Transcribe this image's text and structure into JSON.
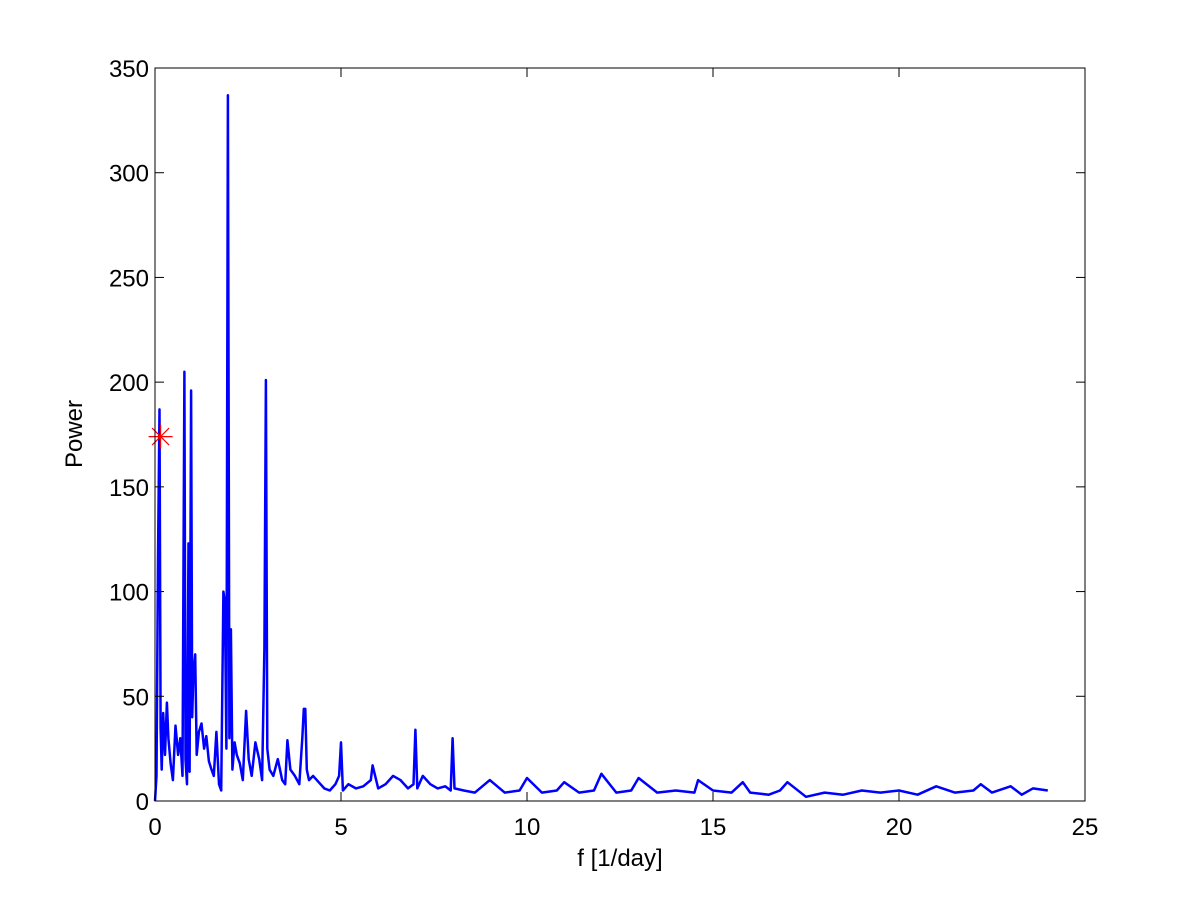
{
  "chart_data": {
    "type": "line",
    "title": "",
    "xlabel": "f [1/day]",
    "ylabel": "Power",
    "xlim": [
      0,
      25
    ],
    "ylim": [
      0,
      350
    ],
    "xticks": [
      0,
      5,
      10,
      15,
      20,
      25
    ],
    "yticks": [
      0,
      50,
      100,
      150,
      200,
      250,
      300,
      350
    ],
    "grid": false,
    "legend": "none",
    "colors": {
      "series": "#0000ff",
      "marker": "#ff0000",
      "axes": "#000000"
    },
    "series": [
      {
        "style": "line",
        "x": [
          0.0,
          0.04,
          0.08,
          0.12,
          0.15,
          0.18,
          0.22,
          0.27,
          0.32,
          0.36,
          0.42,
          0.48,
          0.55,
          0.62,
          0.68,
          0.74,
          0.79,
          0.82,
          0.86,
          0.9,
          0.93,
          0.97,
          1.0,
          1.03,
          1.08,
          1.12,
          1.18,
          1.25,
          1.32,
          1.38,
          1.45,
          1.52,
          1.58,
          1.65,
          1.72,
          1.78,
          1.84,
          1.88,
          1.92,
          1.96,
          2.0,
          2.04,
          2.08,
          2.14,
          2.2,
          2.28,
          2.36,
          2.45,
          2.52,
          2.6,
          2.7,
          2.8,
          2.88,
          2.94,
          2.98,
          3.02,
          3.08,
          3.18,
          3.3,
          3.42,
          3.5,
          3.56,
          3.64,
          3.76,
          3.88,
          3.96,
          4.0,
          4.04,
          4.08,
          4.14,
          4.25,
          4.4,
          4.55,
          4.7,
          4.85,
          4.95,
          5.0,
          5.05,
          5.2,
          5.4,
          5.6,
          5.8,
          5.85,
          6.0,
          6.2,
          6.4,
          6.6,
          6.8,
          6.95,
          7.0,
          7.05,
          7.2,
          7.4,
          7.6,
          7.8,
          7.95,
          8.0,
          8.05,
          8.3,
          8.6,
          9.0,
          9.4,
          9.8,
          10.0,
          10.4,
          10.8,
          11.0,
          11.4,
          11.8,
          12.0,
          12.4,
          12.8,
          13.0,
          13.5,
          14.0,
          14.5,
          14.6,
          15.0,
          15.5,
          15.8,
          16.0,
          16.5,
          16.8,
          17.0,
          17.5,
          18.0,
          18.5,
          19.0,
          19.5,
          20.0,
          20.5,
          21.0,
          21.5,
          22.0,
          22.2,
          22.5,
          23.0,
          23.3,
          23.6,
          24.0
        ],
        "y": [
          0,
          12,
          116,
          187,
          35,
          15,
          42,
          22,
          47,
          30,
          18,
          10,
          36,
          22,
          30,
          12,
          205,
          20,
          8,
          123,
          14,
          196,
          40,
          60,
          70,
          22,
          33,
          37,
          25,
          31,
          19,
          15,
          12,
          33,
          8,
          5,
          100,
          95,
          25,
          337,
          30,
          82,
          15,
          28,
          22,
          18,
          10,
          43,
          20,
          12,
          28,
          20,
          10,
          73,
          201,
          25,
          15,
          12,
          20,
          10,
          8,
          29,
          15,
          12,
          8,
          30,
          44,
          44,
          15,
          10,
          12,
          9,
          6,
          5,
          8,
          12,
          28,
          5,
          8,
          6,
          7,
          10,
          17,
          6,
          8,
          12,
          10,
          6,
          8,
          34,
          6,
          12,
          8,
          6,
          7,
          5,
          30,
          6,
          5,
          4,
          10,
          4,
          5,
          11,
          4,
          5,
          9,
          4,
          5,
          13,
          4,
          5,
          11,
          4,
          5,
          4,
          10,
          5,
          4,
          9,
          4,
          3,
          5,
          9,
          2,
          4,
          3,
          5,
          4,
          5,
          3,
          7,
          4,
          5,
          8,
          4,
          7,
          3,
          6,
          5
        ]
      },
      {
        "style": "marker",
        "marker": "asterisk",
        "x": [
          0.15
        ],
        "y": [
          174
        ]
      }
    ]
  }
}
